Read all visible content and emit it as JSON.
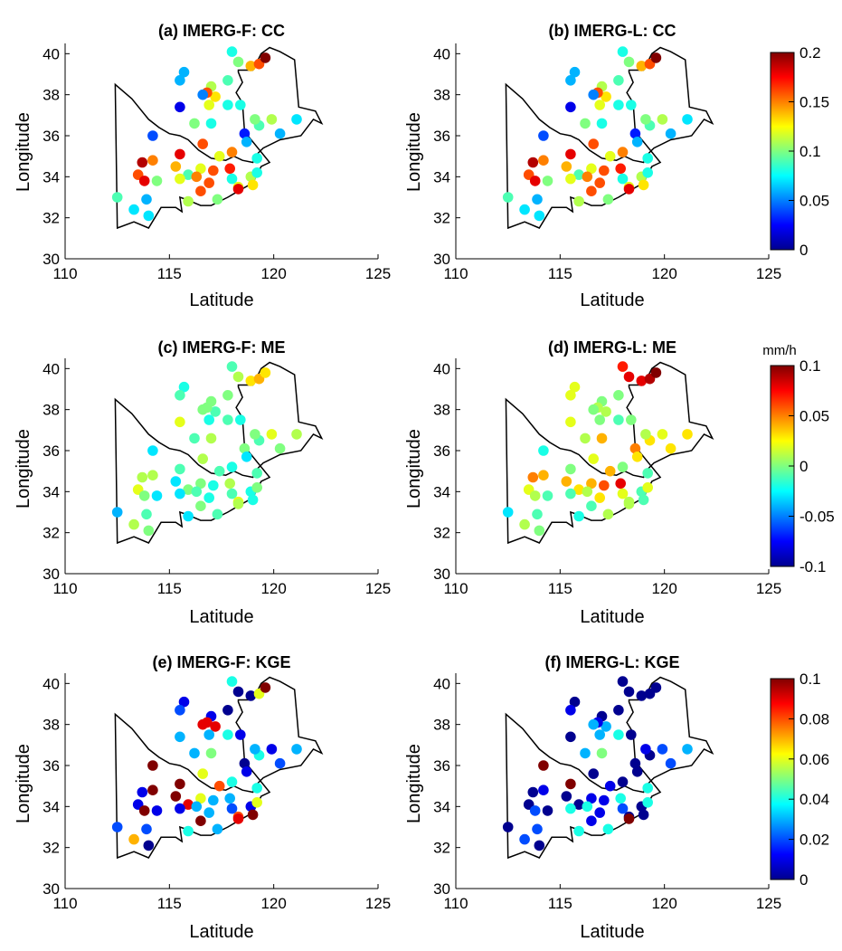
{
  "figure": {
    "xlabel": "Latitude",
    "ylabel": "Longitude",
    "xticks": [
      110,
      115,
      120,
      125
    ],
    "yticks": [
      30,
      32,
      34,
      36,
      38,
      40
    ],
    "xlim": [
      110,
      125
    ],
    "ylim": [
      30,
      40.5
    ]
  },
  "stations": {
    "lon": [
      118.0,
      118.3,
      118.9,
      119.3,
      119.6,
      117.8,
      117.0,
      117.2,
      116.8,
      116.9,
      115.7,
      115.5,
      116.6,
      115.5,
      117.8,
      118.4,
      118.6,
      118.7,
      116.2,
      117.0,
      119.3,
      119.1,
      119.9,
      120.3,
      121.1,
      114.2,
      115.5,
      116.6,
      117.4,
      118.0,
      113.7,
      114.2,
      113.5,
      113.8,
      115.3,
      115.9,
      116.5,
      117.1,
      117.9,
      114.4,
      115.5,
      116.3,
      116.9,
      118.0,
      118.3,
      118.9,
      119.2,
      112.5,
      113.3,
      113.9,
      114.0,
      115.9,
      116.5,
      117.3,
      118.3,
      119.0,
      119.2
    ],
    "lat": [
      40.1,
      39.6,
      39.4,
      39.5,
      39.8,
      38.7,
      38.4,
      37.9,
      38.1,
      37.5,
      39.1,
      38.7,
      38.0,
      37.4,
      37.5,
      37.5,
      36.1,
      35.7,
      36.6,
      36.6,
      36.5,
      36.8,
      36.8,
      36.1,
      36.8,
      36.0,
      35.1,
      35.6,
      35.0,
      35.2,
      34.7,
      34.8,
      34.1,
      33.8,
      34.5,
      34.1,
      34.4,
      34.3,
      34.4,
      33.8,
      33.9,
      34.0,
      33.7,
      33.9,
      33.5,
      34.0,
      34.2,
      33.0,
      32.4,
      32.9,
      32.1,
      32.8,
      33.3,
      32.9,
      33.4,
      33.6,
      34.9
    ],
    "cc_f": [
      0.08,
      0.1,
      0.14,
      0.16,
      0.2,
      0.09,
      0.11,
      0.13,
      0.16,
      0.12,
      0.06,
      0.06,
      0.05,
      0.02,
      0.08,
      0.08,
      0.03,
      0.06,
      0.1,
      0.08,
      0.09,
      0.1,
      0.11,
      0.06,
      0.07,
      0.04,
      0.18,
      0.16,
      0.12,
      0.15,
      0.19,
      0.15,
      0.16,
      0.18,
      0.14,
      0.09,
      0.12,
      0.16,
      0.17,
      0.1,
      0.12,
      0.15,
      0.16,
      0.08,
      0.12,
      0.11,
      0.08,
      0.09,
      0.07,
      0.06,
      0.07,
      0.11,
      0.16,
      0.1,
      0.18,
      0.13,
      0.08
    ],
    "cc_l": [
      0.08,
      0.1,
      0.14,
      0.16,
      0.2,
      0.09,
      0.11,
      0.13,
      0.16,
      0.12,
      0.06,
      0.06,
      0.05,
      0.02,
      0.08,
      0.08,
      0.03,
      0.06,
      0.1,
      0.08,
      0.09,
      0.1,
      0.11,
      0.06,
      0.07,
      0.04,
      0.18,
      0.16,
      0.12,
      0.15,
      0.19,
      0.15,
      0.16,
      0.18,
      0.14,
      0.09,
      0.12,
      0.16,
      0.17,
      0.1,
      0.12,
      0.15,
      0.16,
      0.08,
      0.12,
      0.11,
      0.08,
      0.09,
      0.07,
      0.06,
      0.07,
      0.11,
      0.16,
      0.1,
      0.18,
      0.13,
      0.08
    ],
    "me_f": [
      -0.01,
      0.01,
      0.03,
      0.04,
      0.03,
      0.0,
      0.0,
      -0.01,
      0.0,
      -0.02,
      -0.02,
      -0.01,
      0.0,
      0.02,
      -0.01,
      -0.02,
      0.0,
      -0.03,
      -0.01,
      0.01,
      -0.01,
      0.0,
      0.02,
      0.0,
      0.01,
      -0.03,
      -0.01,
      0.01,
      -0.01,
      -0.02,
      0.01,
      0.01,
      0.02,
      0.0,
      -0.03,
      0.0,
      0.0,
      -0.02,
      0.01,
      -0.03,
      -0.03,
      -0.01,
      -0.02,
      -0.01,
      0.02,
      -0.02,
      0.0,
      -0.04,
      0.01,
      -0.01,
      0.0,
      -0.03,
      0.0,
      -0.01,
      0.01,
      -0.02,
      -0.01
    ],
    "me_l": [
      0.07,
      0.08,
      0.08,
      0.09,
      0.1,
      0.0,
      0.0,
      0.01,
      0.01,
      0.0,
      0.02,
      0.02,
      0.0,
      0.02,
      -0.01,
      0.0,
      0.05,
      0.03,
      0.01,
      0.04,
      0.03,
      0.01,
      0.02,
      0.03,
      0.03,
      -0.02,
      0.0,
      0.02,
      0.04,
      0.0,
      0.05,
      0.04,
      0.02,
      0.01,
      0.04,
      0.03,
      0.04,
      0.06,
      0.08,
      -0.01,
      -0.01,
      0.01,
      0.03,
      0.02,
      0.01,
      -0.01,
      0.02,
      -0.03,
      0.01,
      -0.01,
      0.0,
      -0.02,
      -0.01,
      0.01,
      0.01,
      -0.01,
      -0.01
    ],
    "kge_f": [
      0.04,
      0.0,
      0.0,
      0.06,
      0.1,
      0.0,
      0.01,
      0.09,
      0.09,
      0.03,
      0.01,
      0.02,
      0.09,
      0.03,
      0.04,
      0.01,
      0.0,
      0.01,
      0.03,
      0.05,
      0.04,
      0.03,
      0.01,
      0.02,
      0.03,
      0.1,
      0.1,
      0.06,
      0.08,
      0.04,
      0.01,
      0.1,
      0.01,
      0.1,
      0.1,
      0.09,
      0.06,
      0.03,
      0.03,
      0.01,
      0.01,
      0.03,
      0.03,
      0.02,
      0.08,
      0.01,
      0.06,
      0.02,
      0.07,
      0.02,
      0.0,
      0.04,
      0.1,
      0.03,
      0.09,
      0.1,
      0.04
    ],
    "kge_l": [
      0.0,
      0.0,
      0.0,
      0.0,
      0.0,
      0.0,
      0.0,
      0.03,
      0.01,
      0.03,
      0.0,
      0.01,
      0.03,
      0.0,
      0.04,
      0.0,
      0.0,
      0.0,
      0.03,
      0.05,
      0.0,
      0.01,
      0.02,
      0.02,
      0.03,
      0.1,
      0.1,
      0.0,
      0.01,
      0.0,
      0.0,
      0.01,
      0.0,
      0.02,
      0.0,
      0.0,
      0.01,
      0.01,
      0.04,
      0.0,
      0.04,
      0.04,
      0.01,
      0.02,
      0.0,
      0.0,
      0.04,
      0.0,
      0.02,
      0.02,
      0.0,
      0.04,
      0.01,
      0.04,
      0.1,
      0.0,
      0.04
    ]
  },
  "chart_data": [
    {
      "type": "scatter",
      "panel": "a",
      "title": "(a) IMERG-F: CC",
      "xlabel": "Latitude",
      "ylabel": "Longitude",
      "xlim": [
        110,
        125
      ],
      "ylim": [
        30,
        40.5
      ],
      "x_ref": "stations.lon",
      "y_ref": "stations.lat",
      "color_ref": "stations.cc_f",
      "clim": [
        0,
        0.2
      ],
      "colorbar": {
        "ticks": [
          "0",
          "0.05",
          "0.1",
          "0.15",
          "0.2"
        ],
        "unit": ""
      }
    },
    {
      "type": "scatter",
      "panel": "b",
      "title": "(b) IMERG-L: CC",
      "xlabel": "Latitude",
      "ylabel": "Longitude",
      "xlim": [
        110,
        125
      ],
      "ylim": [
        30,
        40.5
      ],
      "x_ref": "stations.lon",
      "y_ref": "stations.lat",
      "color_ref": "stations.cc_l",
      "clim": [
        0,
        0.2
      ],
      "colorbar": {
        "ticks": [
          "0",
          "0.05",
          "0.1",
          "0.15",
          "0.2"
        ],
        "unit": ""
      }
    },
    {
      "type": "scatter",
      "panel": "c",
      "title": "(c) IMERG-F: ME",
      "xlabel": "Latitude",
      "ylabel": "Longitude",
      "xlim": [
        110,
        125
      ],
      "ylim": [
        30,
        40.5
      ],
      "x_ref": "stations.lon",
      "y_ref": "stations.lat",
      "color_ref": "stations.me_f",
      "clim": [
        -0.1,
        0.1
      ],
      "colorbar": {
        "ticks": [
          "-0.1",
          "-0.05",
          "0",
          "0.05",
          "0.1"
        ],
        "unit": "mm/h"
      }
    },
    {
      "type": "scatter",
      "panel": "d",
      "title": "(d) IMERG-L: ME",
      "xlabel": "Latitude",
      "ylabel": "Longitude",
      "xlim": [
        110,
        125
      ],
      "ylim": [
        30,
        40.5
      ],
      "x_ref": "stations.lon",
      "y_ref": "stations.lat",
      "color_ref": "stations.me_l",
      "clim": [
        -0.1,
        0.1
      ],
      "colorbar": {
        "ticks": [
          "-0.1",
          "-0.05",
          "0",
          "0.05",
          "0.1"
        ],
        "unit": "mm/h"
      }
    },
    {
      "type": "scatter",
      "panel": "e",
      "title": "(e) IMERG-F: KGE",
      "xlabel": "Latitude",
      "ylabel": "Longitude",
      "xlim": [
        110,
        125
      ],
      "ylim": [
        30,
        40.5
      ],
      "x_ref": "stations.lon",
      "y_ref": "stations.lat",
      "color_ref": "stations.kge_f",
      "clim": [
        0,
        0.1
      ],
      "colorbar": {
        "ticks": [
          "0",
          "0.02",
          "0.04",
          "0.06",
          "0.08",
          "0.1"
        ],
        "unit": ""
      }
    },
    {
      "type": "scatter",
      "panel": "f",
      "title": "(f) IMERG-L: KGE",
      "xlabel": "Latitude",
      "ylabel": "Longitude",
      "xlim": [
        110,
        125
      ],
      "ylim": [
        30,
        40.5
      ],
      "x_ref": "stations.lon",
      "y_ref": "stations.lat",
      "color_ref": "stations.kge_l",
      "clim": [
        0,
        0.1
      ],
      "colorbar": {
        "ticks": [
          "0",
          "0.02",
          "0.04",
          "0.06",
          "0.08",
          "0.1"
        ],
        "unit": ""
      }
    }
  ],
  "boundary": {
    "lon": [
      112.5,
      113.3,
      114.0,
      114.6,
      115.3,
      115.6,
      115.5,
      115.8,
      116.5,
      117.0,
      117.8,
      118.3,
      119.0,
      119.4,
      119.8,
      118.6,
      118.5,
      118.2,
      118.5,
      118.3,
      118.3,
      119.0,
      119.4,
      119.8,
      120.3,
      121.0,
      121.2,
      122.0,
      122.3,
      121.9,
      121.3,
      120.3,
      119.5,
      119.1,
      119.0,
      118.5,
      118.1,
      117.7,
      117.0,
      116.4,
      115.9,
      115.5,
      115.0,
      114.5,
      114.0,
      113.2,
      112.4
    ],
    "lat": [
      31.5,
      31.8,
      31.5,
      32.5,
      32.5,
      32.3,
      33.0,
      32.9,
      32.6,
      32.6,
      33.0,
      33.3,
      33.7,
      34.5,
      34.7,
      36.2,
      37.6,
      38.1,
      38.6,
      39.1,
      39.2,
      39.2,
      40.0,
      40.3,
      40.1,
      39.7,
      37.4,
      37.2,
      36.6,
      36.8,
      36.0,
      35.8,
      35.4,
      35.0,
      34.7,
      34.8,
      35.0,
      34.8,
      34.9,
      35.3,
      35.8,
      36.0,
      36.1,
      36.4,
      36.8,
      37.8,
      38.5
    ]
  },
  "colormap": {
    "stops": [
      "#00008f",
      "#0000ff",
      "#00ffff",
      "#ffff00",
      "#ff0000",
      "#800000"
    ],
    "positions": [
      0,
      0.125,
      0.375,
      0.625,
      0.875,
      1
    ]
  },
  "style": {
    "marker_fill_opacity": 1,
    "boundary_color": "#000000",
    "axis_color": "#000000"
  }
}
